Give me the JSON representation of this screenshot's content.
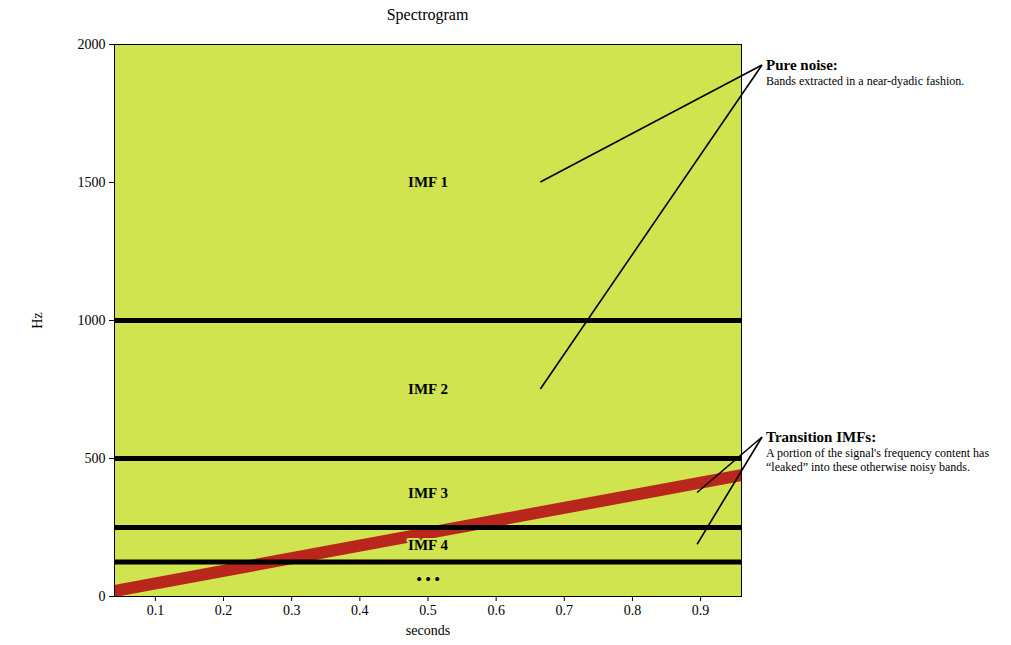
{
  "chart_data": {
    "type": "spectrogram",
    "title": "Spectrogram",
    "x_label": "seconds",
    "y_label": "Hz",
    "xlim": [
      0.04,
      0.96
    ],
    "xticks": [
      0.1,
      0.2,
      0.3,
      0.4,
      0.5,
      0.6,
      0.7,
      0.8,
      0.9
    ],
    "ylim": [
      0,
      2000
    ],
    "yticks": [
      0,
      500,
      1000,
      1500,
      2000
    ],
    "chirp": {
      "type": "line",
      "color": "#b8261c",
      "x": [
        0.04,
        0.96
      ],
      "values": [
        20,
        440
      ]
    },
    "band_edges": {
      "color": "#000000",
      "values": [
        1000,
        500,
        250,
        125
      ]
    },
    "band_labels": [
      "IMF 1",
      "IMF 2",
      "IMF 3",
      "IMF 4",
      "• • •"
    ],
    "annotations": [
      {
        "title": "Pure noise:",
        "text": "Bands extracted in a near-dyadic fashion.",
        "bands": [
          "IMF 1",
          "IMF 2"
        ]
      },
      {
        "title": "Transition IMFs:",
        "text": "A portion of the signal's frequency content has “leaked” into these otherwise noisy bands.",
        "bands": [
          "IMF 3",
          "IMF 4"
        ]
      }
    ]
  }
}
